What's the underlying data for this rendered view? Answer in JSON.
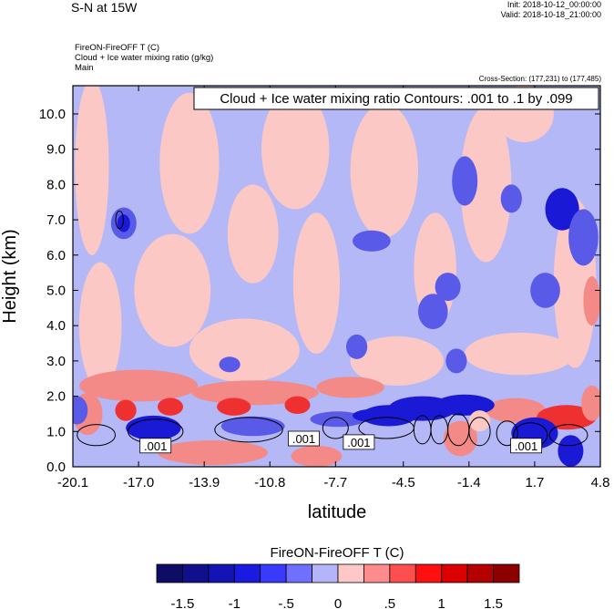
{
  "header": {
    "title": "S-N at 15W",
    "init": "Init: 2018-10-12_00:00:00",
    "valid": "Valid: 2018-10-18_21:00:00",
    "subtitle_lines": [
      "FireON-FireOFF T   (C)",
      "Cloud + Ice water mixing ratio   (g/kg)",
      "Main"
    ],
    "cross_section": "Cross-Section: (177,231) to (177,485)"
  },
  "chart_data": {
    "type": "heatmap",
    "title": "S-N at 15W",
    "xlabel": "latitude",
    "ylabel": "Height (km)",
    "xlim": [
      -20.1,
      4.8
    ],
    "ylim": [
      0.0,
      10.8
    ],
    "x_ticks": [
      "-20.1",
      "-17.0",
      "-13.9",
      "-10.8",
      "-7.7",
      "-4.5",
      "-1.4",
      "1.7",
      "4.8"
    ],
    "x_tick_values": [
      -20.1,
      -17.0,
      -13.9,
      -10.8,
      -7.7,
      -4.5,
      -1.4,
      1.7,
      4.8
    ],
    "y_ticks": [
      "0.0",
      "1.0",
      "2.0",
      "3.0",
      "4.0",
      "5.0",
      "6.0",
      "7.0",
      "8.0",
      "9.0",
      "10.0"
    ],
    "y_tick_values": [
      0,
      1,
      2,
      3,
      4,
      5,
      6,
      7,
      8,
      9,
      10
    ],
    "contour_info": "Cloud + Ice water mixing ratio Contours: .001 to .1 by .099",
    "contour_labels": [
      {
        "text": ".001",
        "x": -16.2,
        "y": 0.6
      },
      {
        "text": ".001",
        "x": -9.2,
        "y": 0.8
      },
      {
        "text": ".001",
        "x": -6.6,
        "y": 0.7
      },
      {
        "text": ".001",
        "x": 1.3,
        "y": 0.6
      }
    ],
    "colorbar": {
      "title": "FireON-FireOFF T  (C)",
      "tick_labels": [
        "-1.5",
        "-1",
        "-.5",
        "0",
        ".5",
        "1",
        "1.5"
      ],
      "tick_values": [
        -1.5,
        -1,
        -0.5,
        0,
        0.5,
        1,
        1.5
      ],
      "colors": [
        "#0d0d66",
        "#10108c",
        "#1414b4",
        "#1a1ae0",
        "#3a3aff",
        "#7070ff",
        "#b4b4f8",
        "#ffc8c8",
        "#ff8c8c",
        "#ff4e4e",
        "#ff1010",
        "#dc0000",
        "#b40000",
        "#8c0000"
      ]
    },
    "field_colors": {
      "neg_strong": "#1a1ad6",
      "neg_mid": "#5a5ae8",
      "neg_weak": "#b4b8f6",
      "pos_weak": "#fcc8c6",
      "pos_mid": "#f48a88",
      "pos_strong": "#ee3030"
    }
  }
}
